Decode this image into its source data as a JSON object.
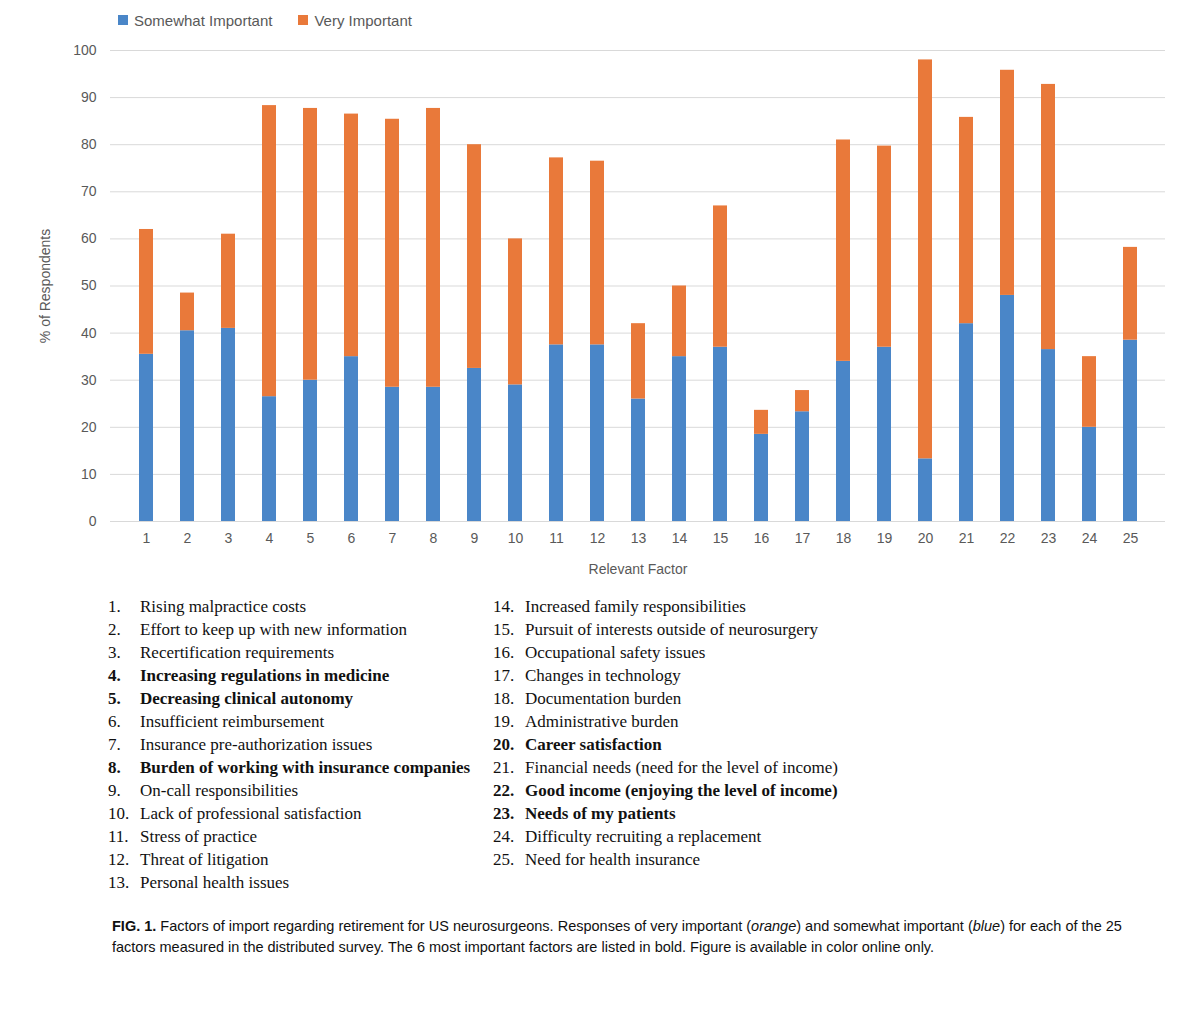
{
  "chart_data": {
    "type": "bar",
    "stacked": true,
    "x_label": "Relevant Factor",
    "y_label": "% of Respondents",
    "categories": [
      "1",
      "2",
      "3",
      "4",
      "5",
      "6",
      "7",
      "8",
      "9",
      "10",
      "11",
      "12",
      "13",
      "14",
      "15",
      "16",
      "17",
      "18",
      "19",
      "20",
      "21",
      "22",
      "23",
      "24",
      "25"
    ],
    "series": [
      {
        "name": "Somewhat Important",
        "color": "#4a86c8",
        "values": [
          35.5,
          40.5,
          41,
          26.5,
          30,
          35,
          28.5,
          28.5,
          32.5,
          29,
          37.5,
          37.5,
          26,
          35,
          37,
          18.5,
          23.3,
          34,
          37,
          13.3,
          42,
          48,
          36.5,
          20,
          38.5
        ]
      },
      {
        "name": "Very Important",
        "color": "#e9793a",
        "values": [
          26.5,
          8,
          20,
          61.8,
          57.7,
          51.5,
          56.9,
          59.2,
          47.5,
          31,
          39.7,
          39,
          16,
          15,
          30,
          5.1,
          4.5,
          47,
          42.7,
          84.7,
          43.8,
          47.8,
          56.3,
          15,
          19.7
        ]
      }
    ],
    "ylim": [
      0,
      100
    ],
    "yticks": [
      0,
      10,
      20,
      30,
      40,
      50,
      60,
      70,
      80,
      90,
      100
    ],
    "grid": true,
    "legend": "top-left"
  },
  "factor_list": [
    {
      "number": "1.",
      "text": "Rising malpractice costs",
      "bold": false
    },
    {
      "number": "2.",
      "text": "Effort to keep up with new information",
      "bold": false
    },
    {
      "number": "3.",
      "text": "Recertification requirements",
      "bold": false
    },
    {
      "number": "4.",
      "text": "Increasing regulations in medicine",
      "bold": true
    },
    {
      "number": "5.",
      "text": "Decreasing clinical autonomy",
      "bold": true
    },
    {
      "number": "6.",
      "text": "Insufficient reimbursement",
      "bold": false
    },
    {
      "number": "7.",
      "text": "Insurance pre-authorization issues",
      "bold": false
    },
    {
      "number": "8.",
      "text": "Burden of working with insurance companies",
      "bold": true
    },
    {
      "number": "9.",
      "text": "On-call responsibilities",
      "bold": false
    },
    {
      "number": "10.",
      "text": "Lack of professional satisfaction",
      "bold": false
    },
    {
      "number": "11.",
      "text": "Stress of practice",
      "bold": false
    },
    {
      "number": "12.",
      "text": "Threat of litigation",
      "bold": false
    },
    {
      "number": "13.",
      "text": "Personal health issues",
      "bold": false
    },
    {
      "number": "14.",
      "text": "Increased family responsibilities",
      "bold": false
    },
    {
      "number": "15.",
      "text": "Pursuit of interests outside of neurosurgery",
      "bold": false
    },
    {
      "number": "16.",
      "text": "Occupational safety issues",
      "bold": false
    },
    {
      "number": "17.",
      "text": "Changes in technology",
      "bold": false
    },
    {
      "number": "18.",
      "text": "Documentation burden",
      "bold": false
    },
    {
      "number": "19.",
      "text": "Administrative burden",
      "bold": false
    },
    {
      "number": "20.",
      "text": "Career satisfaction",
      "bold": true
    },
    {
      "number": "21.",
      "text": "Financial needs (need for the level of income)",
      "bold": false
    },
    {
      "number": "22.",
      "text": "Good income (enjoying the level of income)",
      "bold": true
    },
    {
      "number": "23.",
      "text": "Needs of my patients",
      "bold": true
    },
    {
      "number": "24.",
      "text": "Difficulty recruiting a replacement",
      "bold": false
    },
    {
      "number": "25.",
      "text": "Need for health insurance",
      "bold": false
    }
  ],
  "caption": [
    {
      "text": "FIG. 1.",
      "style": "bold"
    },
    {
      "text": " Factors of import regarding retirement for US neurosurgeons. Responses of very important (",
      "style": "normal"
    },
    {
      "text": "orange",
      "style": "italic"
    },
    {
      "text": ") and somewhat important (",
      "style": "normal"
    },
    {
      "text": "blue",
      "style": "italic"
    },
    {
      "text": ") for each of the 25 factors measured in the distributed survey. The 6 most important factors are listed in bold. Figure is available in color online only.",
      "style": "normal"
    }
  ]
}
